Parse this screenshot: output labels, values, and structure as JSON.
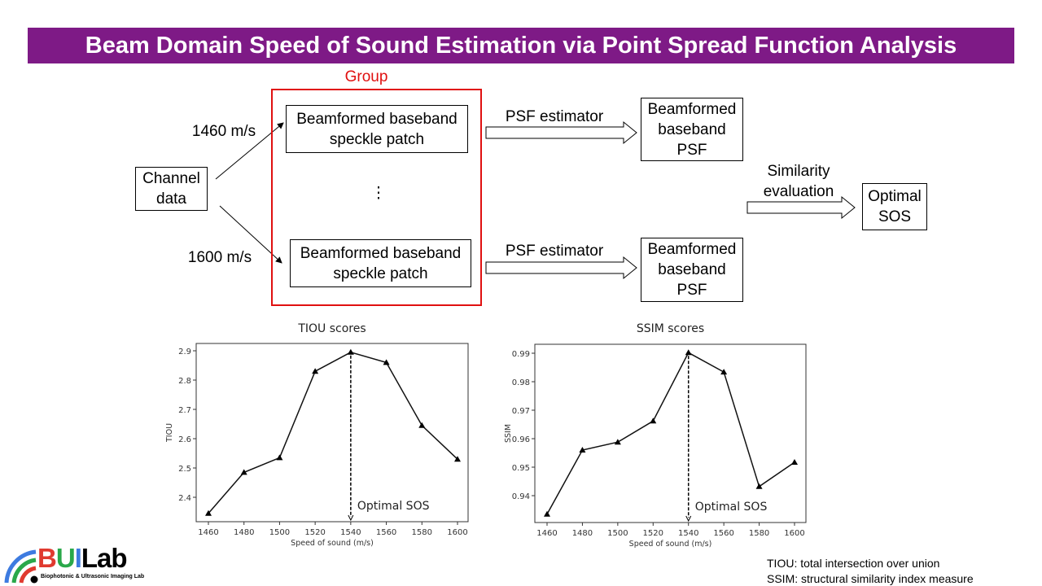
{
  "title": "Beam Domain Speed of Sound Estimation via Point Spread Function Analysis",
  "diagram": {
    "group_label": "Group",
    "channel_data": "Channel data",
    "sos_top": "1460 m/s",
    "sos_bottom": "1600 m/s",
    "patch_top": "Beamformed baseband speckle patch",
    "patch_bottom": "Beamformed baseband speckle patch",
    "ellipsis": "⋮",
    "psf_estimator_top": "PSF estimator",
    "psf_estimator_bottom": "PSF estimator",
    "psf_top": "Beamformed baseband PSF",
    "psf_bottom": "Beamformed baseband PSF",
    "similarity": "Similarity evaluation",
    "optimal": "Optimal SOS"
  },
  "chart_data": [
    {
      "type": "line",
      "title": "TIOU scores",
      "xlabel": "Speed of sound (m/s)",
      "ylabel": "TIOU",
      "x": [
        1460,
        1480,
        1500,
        1520,
        1540,
        1560,
        1580,
        1600
      ],
      "values": [
        2.345,
        2.485,
        2.535,
        2.83,
        2.895,
        2.86,
        2.645,
        2.53
      ],
      "xticks": [
        "1460",
        "1480",
        "1500",
        "1520",
        "1540",
        "1560",
        "1580",
        "1600"
      ],
      "yticks": [
        "2.4",
        "2.5",
        "2.6",
        "2.7",
        "2.8",
        "2.9"
      ],
      "annotation": "Optimal SOS",
      "annotation_x": 1540,
      "marker": "triangle"
    },
    {
      "type": "line",
      "title": "SSIM scores",
      "xlabel": "Speed of sound (m/s)",
      "ylabel": "SSIM",
      "x": [
        1460,
        1480,
        1500,
        1520,
        1540,
        1560,
        1580,
        1600
      ],
      "values": [
        0.9335,
        0.956,
        0.9588,
        0.9662,
        0.9902,
        0.9834,
        0.9432,
        0.9517
      ],
      "xticks": [
        "1460",
        "1480",
        "1500",
        "1520",
        "1540",
        "1560",
        "1580",
        "1600"
      ],
      "yticks": [
        "0.94",
        "0.95",
        "0.96",
        "0.97",
        "0.98",
        "0.99"
      ],
      "annotation": "Optimal SOS",
      "annotation_x": 1540,
      "marker": "triangle"
    }
  ],
  "footnotes": [
    "TIOU:  total intersection over union",
    "SSIM:  structural similarity index measure"
  ],
  "logo": {
    "name": "BUILab",
    "subtitle": "Biophotonic & Ultrasonic Imaging Lab"
  }
}
